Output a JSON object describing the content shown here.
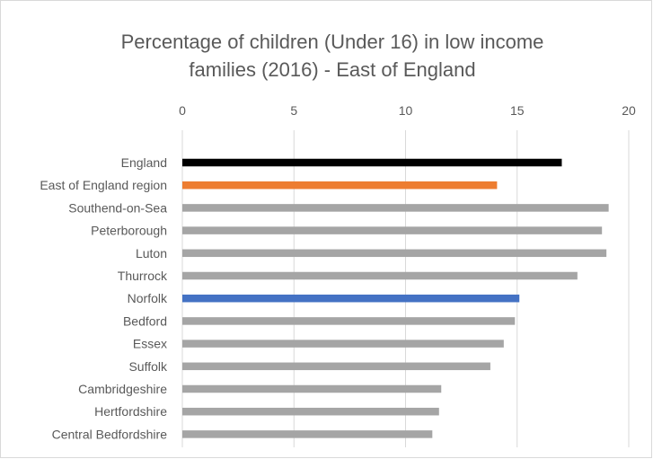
{
  "chart_data": {
    "type": "bar",
    "orientation": "horizontal",
    "title_lines": [
      "Percentage of children (Under 16) in low income",
      "families (2016) - East of England"
    ],
    "xlim": [
      0,
      20
    ],
    "x_ticks": [
      "0",
      "5",
      "10",
      "15",
      "20"
    ],
    "x_axis_position": "top",
    "gridlines": true,
    "legend": "none",
    "categories": [
      "England",
      "East of England region",
      "Southend-on-Sea",
      "Peterborough",
      "Luton",
      "Thurrock",
      "Norfolk",
      "Bedford",
      "Essex",
      "Suffolk",
      "Cambridgeshire",
      "Hertfordshire",
      "Central Bedfordshire"
    ],
    "values": [
      17.0,
      14.1,
      19.1,
      18.8,
      19.0,
      17.7,
      15.1,
      14.9,
      14.4,
      13.8,
      11.6,
      11.5,
      11.2
    ],
    "colors": [
      "#000000",
      "#ed7d31",
      "#a5a5a5",
      "#a5a5a5",
      "#a5a5a5",
      "#a5a5a5",
      "#4472c4",
      "#a5a5a5",
      "#a5a5a5",
      "#a5a5a5",
      "#a5a5a5",
      "#a5a5a5",
      "#a5a5a5"
    ]
  }
}
